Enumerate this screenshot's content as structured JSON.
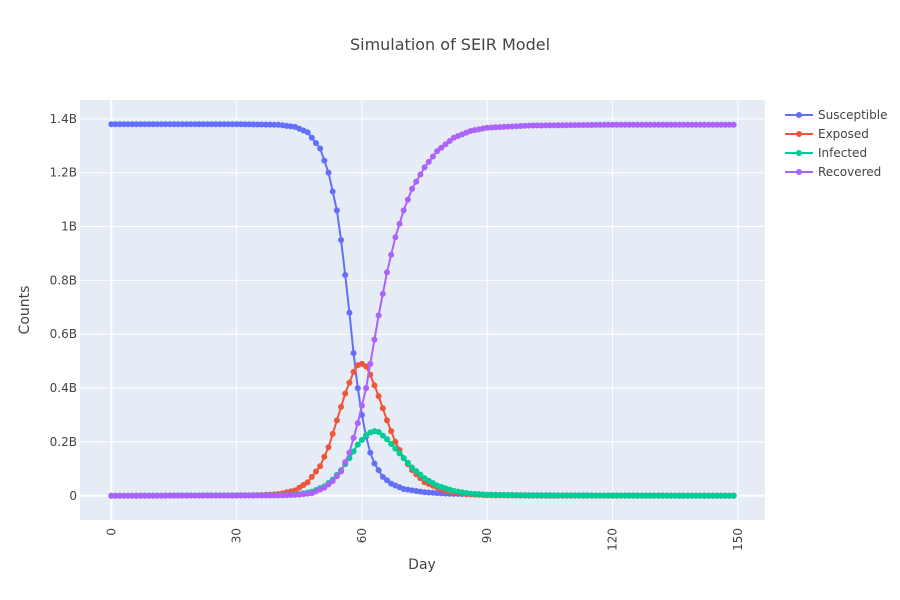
{
  "chart_data": {
    "type": "line",
    "title": "Simulation of SEIR Model",
    "xlabel": "Day",
    "ylabel": "Counts",
    "xlim": [
      -7.5,
      156.5
    ],
    "ylim": [
      -0.09,
      1.47
    ],
    "y_unit": "billions",
    "x_ticks": [
      0,
      30,
      60,
      90,
      120,
      150
    ],
    "x_tick_labels": [
      "0",
      "30",
      "60",
      "90",
      "120",
      "150"
    ],
    "y_ticks": [
      0,
      0.2,
      0.4,
      0.6,
      0.8,
      1.0,
      1.2,
      1.4
    ],
    "y_tick_labels": [
      "0",
      "0.2B",
      "0.4B",
      "0.6B",
      "0.8B",
      "1B",
      "1.2B",
      "1.4B"
    ],
    "grid": true,
    "legend_position": "top-right",
    "colors": {
      "plot_bg": "#E5ECF6",
      "grid": "#ffffff",
      "text": "#444444"
    },
    "series": [
      {
        "name": "Susceptible",
        "color": "#636EFA",
        "points": [
          [
            0,
            1.38
          ],
          [
            30,
            1.38
          ],
          [
            40,
            1.378
          ],
          [
            44,
            1.37
          ],
          [
            47,
            1.35
          ],
          [
            50,
            1.29
          ],
          [
            52,
            1.2
          ],
          [
            54,
            1.06
          ],
          [
            55,
            0.95
          ],
          [
            56,
            0.82
          ],
          [
            57,
            0.68
          ],
          [
            58,
            0.53
          ],
          [
            59,
            0.4
          ],
          [
            60,
            0.3
          ],
          [
            61,
            0.22
          ],
          [
            62,
            0.16
          ],
          [
            63,
            0.12
          ],
          [
            65,
            0.07
          ],
          [
            67,
            0.045
          ],
          [
            70,
            0.025
          ],
          [
            75,
            0.013
          ],
          [
            80,
            0.008
          ],
          [
            90,
            0.004
          ],
          [
            100,
            0.002
          ],
          [
            120,
            0.001
          ],
          [
            149,
            0.0005
          ]
        ]
      },
      {
        "name": "Exposed",
        "color": "#EF553B",
        "points": [
          [
            0,
            0
          ],
          [
            35,
            0.002
          ],
          [
            40,
            0.006
          ],
          [
            44,
            0.02
          ],
          [
            47,
            0.05
          ],
          [
            50,
            0.11
          ],
          [
            52,
            0.18
          ],
          [
            54,
            0.28
          ],
          [
            56,
            0.38
          ],
          [
            58,
            0.46
          ],
          [
            59,
            0.485
          ],
          [
            60,
            0.49
          ],
          [
            61,
            0.48
          ],
          [
            62,
            0.45
          ],
          [
            64,
            0.37
          ],
          [
            66,
            0.28
          ],
          [
            68,
            0.2
          ],
          [
            70,
            0.14
          ],
          [
            72,
            0.095
          ],
          [
            75,
            0.05
          ],
          [
            80,
            0.018
          ],
          [
            85,
            0.006
          ],
          [
            90,
            0.002
          ],
          [
            100,
            0.0003
          ],
          [
            149,
            0
          ]
        ]
      },
      {
        "name": "Infected",
        "color": "#00CC96",
        "points": [
          [
            0,
            0
          ],
          [
            40,
            0.002
          ],
          [
            45,
            0.006
          ],
          [
            48,
            0.015
          ],
          [
            51,
            0.035
          ],
          [
            53,
            0.06
          ],
          [
            55,
            0.095
          ],
          [
            57,
            0.14
          ],
          [
            59,
            0.19
          ],
          [
            61,
            0.225
          ],
          [
            62,
            0.235
          ],
          [
            63,
            0.24
          ],
          [
            64,
            0.237
          ],
          [
            66,
            0.21
          ],
          [
            68,
            0.175
          ],
          [
            70,
            0.14
          ],
          [
            72,
            0.105
          ],
          [
            75,
            0.065
          ],
          [
            78,
            0.038
          ],
          [
            82,
            0.018
          ],
          [
            86,
            0.008
          ],
          [
            90,
            0.004
          ],
          [
            100,
            0.001
          ],
          [
            149,
            0
          ]
        ]
      },
      {
        "name": "Recovered",
        "color": "#AB63FA",
        "points": [
          [
            0,
            0
          ],
          [
            40,
            0.001
          ],
          [
            45,
            0.004
          ],
          [
            48,
            0.01
          ],
          [
            51,
            0.03
          ],
          [
            53,
            0.055
          ],
          [
            55,
            0.09
          ],
          [
            57,
            0.16
          ],
          [
            59,
            0.27
          ],
          [
            61,
            0.4
          ],
          [
            62,
            0.49
          ],
          [
            63,
            0.58
          ],
          [
            64,
            0.67
          ],
          [
            65,
            0.75
          ],
          [
            66,
            0.83
          ],
          [
            68,
            0.96
          ],
          [
            70,
            1.06
          ],
          [
            72,
            1.14
          ],
          [
            75,
            1.22
          ],
          [
            78,
            1.28
          ],
          [
            82,
            1.33
          ],
          [
            86,
            1.355
          ],
          [
            90,
            1.367
          ],
          [
            100,
            1.375
          ],
          [
            120,
            1.378
          ],
          [
            149,
            1.378
          ]
        ]
      }
    ]
  }
}
